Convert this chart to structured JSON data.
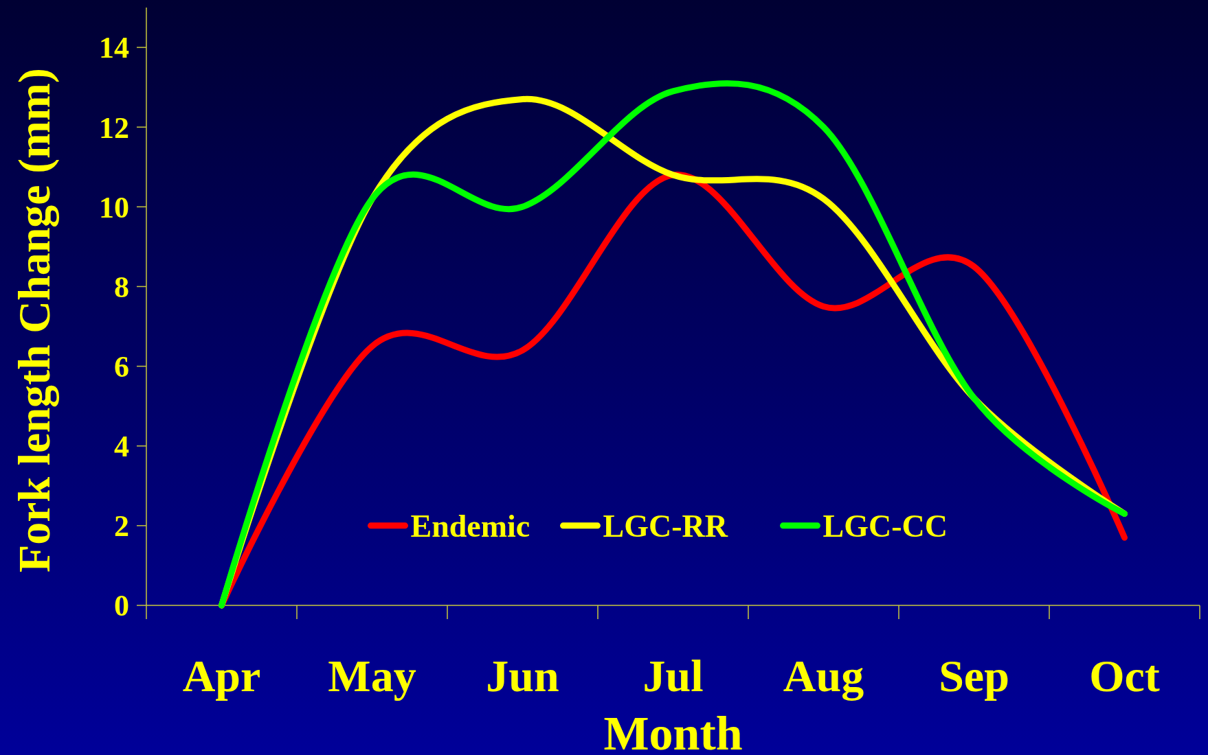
{
  "chart_data": {
    "type": "line",
    "xlabel": "Month",
    "ylabel": "Fork length Change (mm)",
    "categories": [
      "Apr",
      "May",
      "Jun",
      "Jul",
      "Aug",
      "Sep",
      "Oct"
    ],
    "ylim": [
      0,
      15
    ],
    "yticks": [
      0,
      2,
      4,
      6,
      8,
      10,
      12,
      14
    ],
    "grid": false,
    "legend": "bottom",
    "marker": "none",
    "line_style": "solid",
    "series": [
      {
        "name": "Endemic",
        "color": "#ff0000",
        "values": [
          0,
          6.5,
          6.4,
          10.8,
          7.5,
          8.5,
          1.7
        ]
      },
      {
        "name": "LGC-RR",
        "color": "#ffff00",
        "values": [
          0,
          10.2,
          12.7,
          10.8,
          10.2,
          5.2,
          2.3
        ]
      },
      {
        "name": "LGC-CC",
        "color": "#00ff00",
        "values": [
          0,
          10.2,
          10.0,
          12.9,
          12.0,
          5.2,
          2.3
        ]
      }
    ]
  }
}
